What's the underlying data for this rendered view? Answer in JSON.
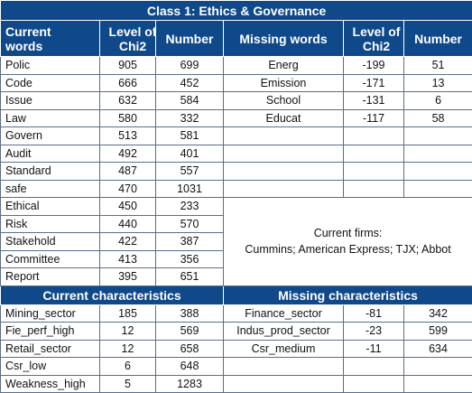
{
  "title": "Class 1: Ethics & Governance",
  "current_words": {
    "headers": [
      "Current words",
      "Level of Chi2",
      "Number"
    ],
    "rows": [
      [
        "Polic",
        905,
        699
      ],
      [
        "Code",
        666,
        452
      ],
      [
        "Issue",
        632,
        584
      ],
      [
        "Law",
        580,
        332
      ],
      [
        "Govern",
        513,
        581
      ],
      [
        "Audit",
        492,
        401
      ],
      [
        "Standard",
        487,
        557
      ],
      [
        "safe",
        470,
        1031
      ],
      [
        "Ethical",
        450,
        233
      ],
      [
        "Risk",
        440,
        570
      ],
      [
        "Stakehold",
        422,
        387
      ],
      [
        "Committee",
        413,
        356
      ],
      [
        "Report",
        395,
        651
      ]
    ]
  },
  "missing_words": {
    "headers": [
      "Missing words",
      "Level of Chi2",
      "Number"
    ],
    "rows": [
      [
        "Energ",
        -199,
        51
      ],
      [
        "Emission",
        -171,
        13
      ],
      [
        "School",
        -131,
        6
      ],
      [
        "Educat",
        -117,
        58
      ]
    ]
  },
  "current_firms": {
    "label": "Current firms:",
    "firms": "Cummins; American Express; TJX; Abbot"
  },
  "current_characteristics": {
    "title": "Current characteristics",
    "rows": [
      [
        "Mining_sector",
        185,
        388
      ],
      [
        "Fie_perf_high",
        12,
        569
      ],
      [
        "Retail_sector",
        12,
        658
      ],
      [
        "Csr_low",
        6,
        648
      ],
      [
        "Weakness_high",
        5,
        1283
      ]
    ]
  },
  "missing_characteristics": {
    "title": "Missing characteristics",
    "rows": [
      [
        "Finance_sector",
        -81,
        342
      ],
      [
        "Indus_prod_sector",
        -23,
        599
      ],
      [
        "Csr_medium",
        -11,
        634
      ]
    ]
  }
}
